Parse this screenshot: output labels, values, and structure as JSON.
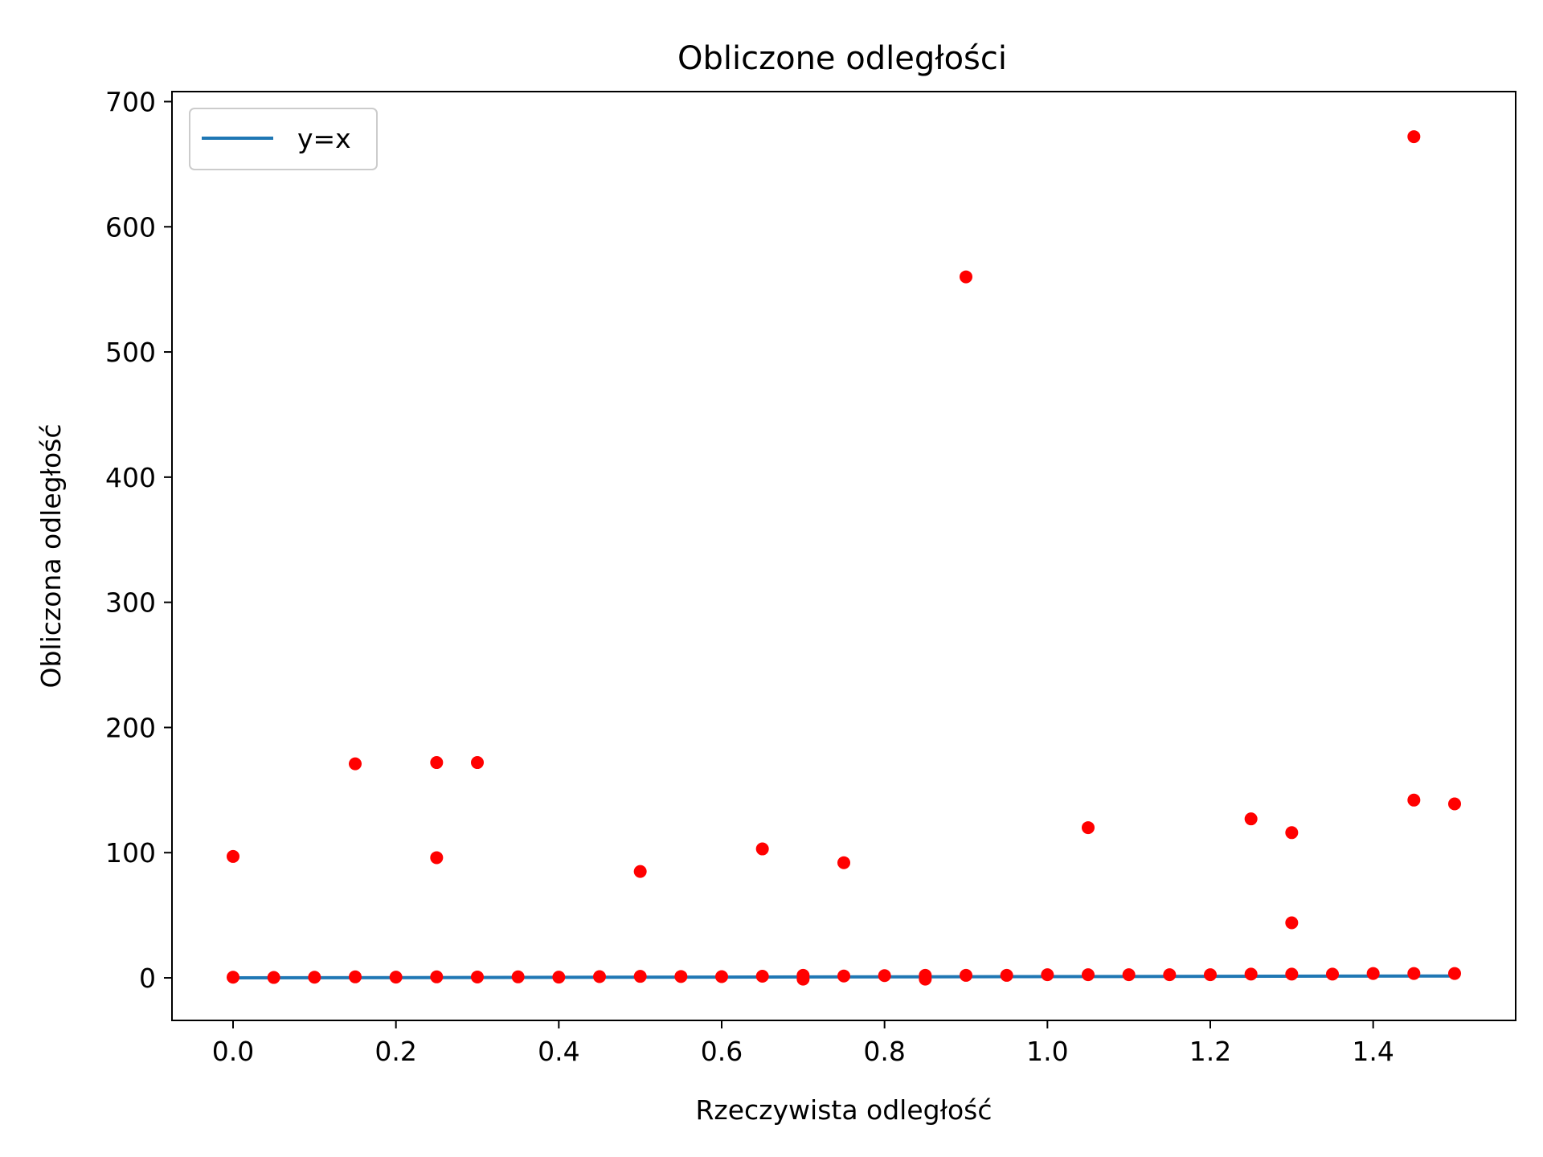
{
  "chart_data": {
    "type": "scatter",
    "title": "Obliczone odległości",
    "xlabel": "Rzeczywista odległość",
    "ylabel": "Obliczona odległość",
    "xlim": [
      -0.075,
      1.575
    ],
    "ylim": [
      -34,
      708
    ],
    "xticks": [
      0.0,
      0.2,
      0.4,
      0.6,
      0.8,
      1.0,
      1.2,
      1.4
    ],
    "xtick_labels": [
      "0.0",
      "0.2",
      "0.4",
      "0.6",
      "0.8",
      "1.0",
      "1.2",
      "1.4"
    ],
    "yticks": [
      0,
      100,
      200,
      300,
      400,
      500,
      600,
      700
    ],
    "ytick_labels": [
      "0",
      "100",
      "200",
      "300",
      "400",
      "500",
      "600",
      "700"
    ],
    "grid": false,
    "legend": {
      "position": "top-left",
      "entries": [
        {
          "label": "y=x",
          "color": "#1f77b4",
          "marker": "line"
        }
      ]
    },
    "series": [
      {
        "name": "y=x",
        "kind": "line",
        "color": "#1f77b4",
        "x": [
          0.0,
          1.5
        ],
        "y": [
          0.0,
          1.5
        ]
      },
      {
        "name": "points",
        "kind": "scatter",
        "color": "#ff0000",
        "points": [
          [
            0.0,
            0.5
          ],
          [
            0.0,
            97
          ],
          [
            0.05,
            0.3
          ],
          [
            0.1,
            0.5
          ],
          [
            0.15,
            0.8
          ],
          [
            0.15,
            171
          ],
          [
            0.2,
            0.6
          ],
          [
            0.25,
            0.8
          ],
          [
            0.25,
            96
          ],
          [
            0.25,
            172
          ],
          [
            0.3,
            0.7
          ],
          [
            0.3,
            172
          ],
          [
            0.35,
            0.8
          ],
          [
            0.4,
            0.6
          ],
          [
            0.45,
            1.0
          ],
          [
            0.5,
            1.2
          ],
          [
            0.5,
            85
          ],
          [
            0.55,
            1.1
          ],
          [
            0.6,
            1.0
          ],
          [
            0.65,
            1.3
          ],
          [
            0.65,
            103
          ],
          [
            0.7,
            -1.0
          ],
          [
            0.7,
            2.0
          ],
          [
            0.75,
            1.5
          ],
          [
            0.75,
            92
          ],
          [
            0.8,
            1.8
          ],
          [
            0.85,
            -1.0
          ],
          [
            0.85,
            2.0
          ],
          [
            0.9,
            2.0
          ],
          [
            0.9,
            560
          ],
          [
            0.95,
            2.0
          ],
          [
            1.0,
            2.5
          ],
          [
            1.05,
            2.5
          ],
          [
            1.05,
            120
          ],
          [
            1.1,
            2.5
          ],
          [
            1.15,
            2.5
          ],
          [
            1.2,
            2.5
          ],
          [
            1.25,
            3.0
          ],
          [
            1.25,
            127
          ],
          [
            1.3,
            3.0
          ],
          [
            1.3,
            44
          ],
          [
            1.3,
            116
          ],
          [
            1.35,
            3.0
          ],
          [
            1.4,
            3.5
          ],
          [
            1.45,
            3.5
          ],
          [
            1.45,
            142
          ],
          [
            1.45,
            672
          ],
          [
            1.5,
            3.5
          ],
          [
            1.5,
            139
          ]
        ]
      }
    ]
  }
}
